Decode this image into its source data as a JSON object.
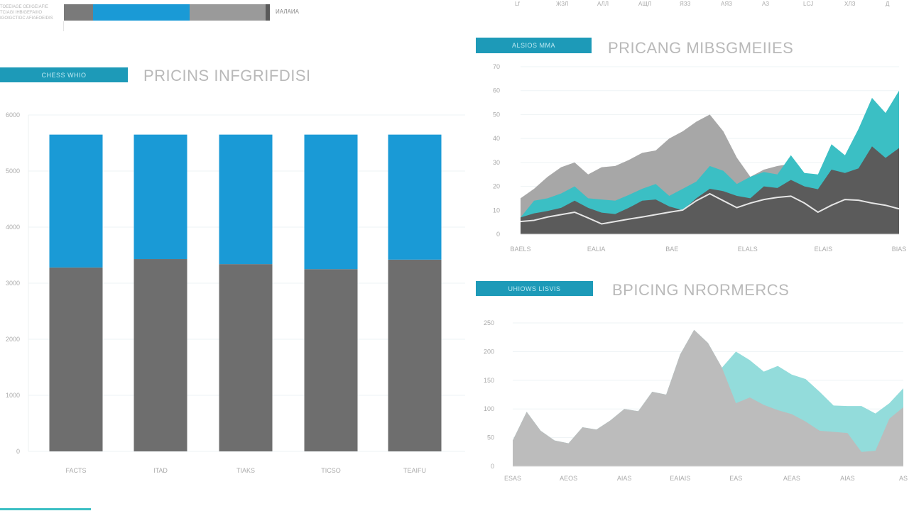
{
  "header": {
    "intro_lines": [
      "TOEEIAGE OEIIGEIAFIE",
      "TCIAGI IHBIGEFAIIIO",
      "IGOIGCTIDC AFIAEOEIDIS"
    ],
    "legend_bar": {
      "segments": [
        {
          "color": "#7a7a7a",
          "share": 0.14
        },
        {
          "color": "#1a9ad6",
          "share": 0.47
        },
        {
          "color": "#9a9a9a",
          "share": 0.37
        },
        {
          "color": "#5a5a5a",
          "share": 0.02
        }
      ],
      "label": "ИАЛАИА"
    },
    "top_axis_labels": [
      "Lf",
      "ЖЗЛ",
      "АЛЛ",
      "АЩЛ",
      "ЯЗЗ",
      "АЯЗ",
      "АЗ",
      "LCJ",
      "ХЛЗ",
      "Д"
    ]
  },
  "colors": {
    "tag": "#1d9ab8",
    "blue": "#1a9ad6",
    "gray": "#6e6e6e",
    "teal": "#3bbfc4",
    "light_teal": "#93dcdb",
    "light_gray": "#a7a7a7",
    "dark_gray": "#5b5b5b"
  },
  "chart_data": [
    {
      "type": "bar",
      "tag": "CHESS WHIO",
      "title": "PRICINS INFGRIFDISI",
      "stacked": true,
      "categories": [
        "FACTS",
        "ITAD",
        "TIAKS",
        "TICSO",
        "TEAIFU"
      ],
      "series": [
        {
          "color": "#6e6e6e",
          "values": [
            3280,
            3430,
            3340,
            3250,
            3420
          ]
        },
        {
          "color": "#1a9ad6",
          "values": [
            2370,
            2220,
            2310,
            2400,
            2230
          ]
        }
      ],
      "yticks": [
        "0",
        "1000",
        "2000",
        "3000",
        "4000",
        "5000",
        "6000"
      ],
      "ylim": [
        0,
        6000
      ],
      "grid": true
    },
    {
      "type": "area",
      "tag": "ALSIOS MMA",
      "title": "PRICANG MIBSGMEIIES",
      "xticks": [
        "BAELS",
        "EALIA",
        "BAE",
        "ELALS",
        "ELAIS",
        "BIAS"
      ],
      "yticks": [
        "0",
        "10",
        "20",
        "30",
        "40",
        "50",
        "60",
        "70"
      ],
      "ylim": [
        0,
        70
      ],
      "grid": true,
      "series": [
        {
          "style": "area",
          "color": "#a7a7a7",
          "values": [
            15,
            19,
            24,
            28,
            30,
            25,
            28,
            28.5,
            31,
            34,
            35,
            40,
            43,
            47,
            50,
            43,
            32,
            24,
            27,
            28.5,
            29.4,
            20,
            18.8,
            27,
            25.6,
            27.5,
            36.7,
            31.9,
            36
          ]
        },
        {
          "style": "area",
          "color": "#3bbfc4",
          "values": [
            7,
            14,
            15,
            17,
            20,
            15,
            14.5,
            14,
            16.4,
            19,
            21,
            16,
            19,
            22,
            28.5,
            26.5,
            21,
            24,
            26,
            25,
            33,
            25.6,
            25,
            37.6,
            33,
            44,
            57,
            50.7,
            60
          ]
        },
        {
          "style": "area",
          "color": "#5b5b5b",
          "values": [
            7,
            8.7,
            9.7,
            11,
            14,
            11,
            9,
            8.4,
            11,
            14,
            14.5,
            11.6,
            10,
            15,
            19,
            18,
            16,
            15,
            20,
            19.3,
            22.7,
            20,
            18.8,
            27,
            25.6,
            27.5,
            36.7,
            31.9,
            36
          ]
        },
        {
          "style": "line",
          "color": "#e6e6e6",
          "values": [
            5.3,
            5.8,
            7.2,
            8.2,
            9.2,
            6.8,
            4.3,
            5.3,
            6.3,
            7.2,
            8.2,
            9.2,
            10.1,
            14,
            16.9,
            14,
            11.1,
            13,
            14.5,
            15.4,
            15.9,
            13,
            9.2,
            12.1,
            14.5,
            14.2,
            13,
            12.1,
            10.6
          ]
        }
      ]
    },
    {
      "type": "area",
      "tag": "UHIOWS LISVIS",
      "title": "BPICING NRORMERCS",
      "xticks": [
        "ESAS",
        "AEOS",
        "AIAS",
        "EAIAIS",
        "EAS",
        "AEAS",
        "AIAS",
        "AS"
      ],
      "yticks": [
        "0",
        "50",
        "100",
        "150",
        "200",
        "250"
      ],
      "ylim": [
        0,
        250
      ],
      "grid": true,
      "series": [
        {
          "style": "area",
          "color": "#93dcdb",
          "values": [
            45,
            95,
            62,
            45,
            40,
            68,
            64,
            80,
            100,
            96,
            130,
            125,
            195,
            238,
            215,
            172,
            200,
            185,
            165,
            175,
            160,
            152,
            130,
            106,
            105,
            105,
            92,
            110,
            136
          ]
        },
        {
          "style": "area",
          "color": "#bcbcbc",
          "values": [
            45,
            95,
            62,
            45,
            40,
            68,
            64,
            80,
            100,
            96,
            130,
            125,
            195,
            238,
            215,
            172,
            110,
            120,
            107,
            98,
            91,
            78,
            62,
            60,
            58,
            25,
            27,
            83,
            103
          ]
        }
      ]
    }
  ]
}
